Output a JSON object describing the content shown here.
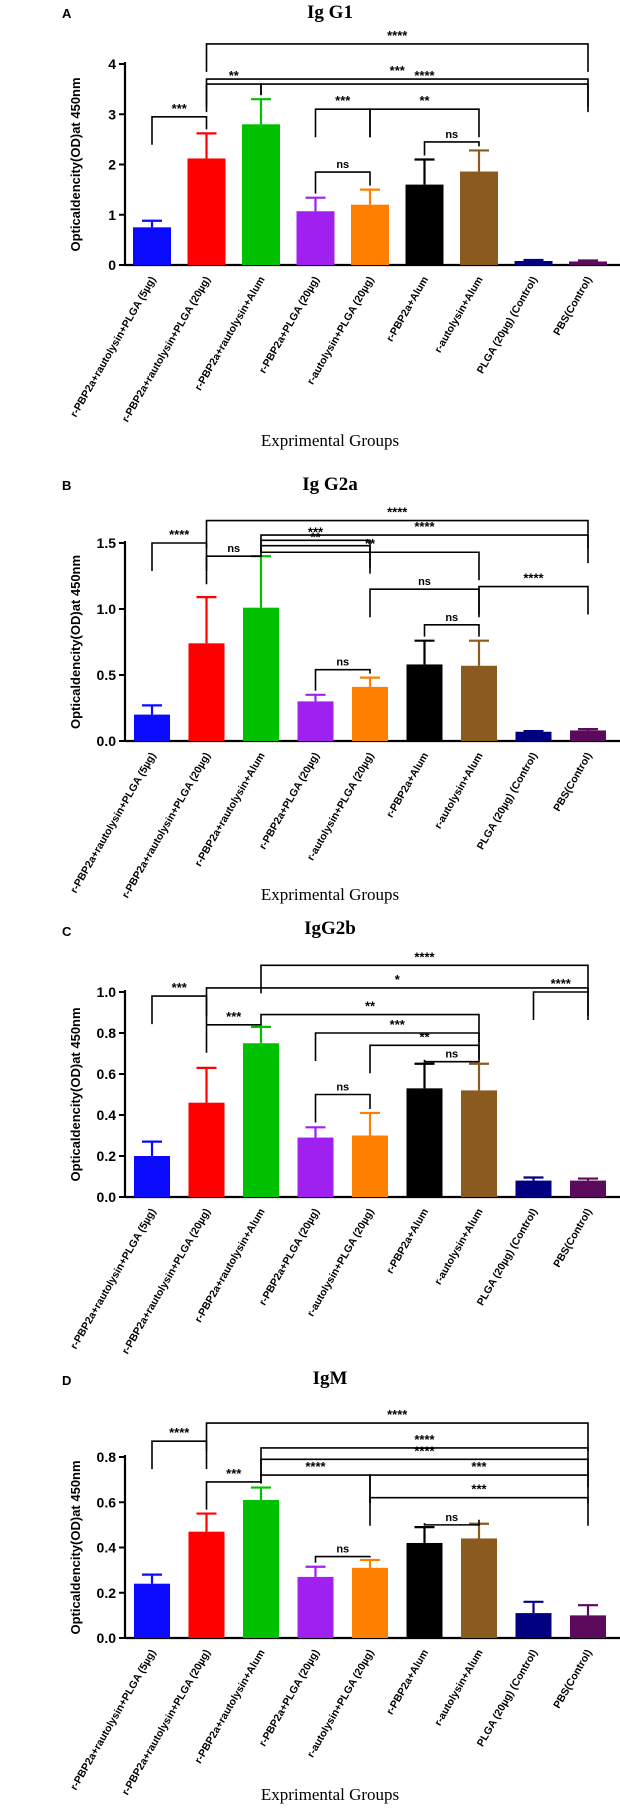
{
  "colors": [
    "#0a0aff",
    "#ff0000",
    "#00c000",
    "#a020f0",
    "#ff8000",
    "#000000",
    "#8b5a1e",
    "#000080",
    "#5c0a5c"
  ],
  "chart_data": [
    {
      "type": "bar",
      "panel": "A",
      "title": "Ig G1",
      "ylabel": "Opticaldencity(OD)at 450nm",
      "xlabel": "Exprimental Groups",
      "ylim": [
        0,
        4
      ],
      "yticks": [
        "0",
        "1",
        "2",
        "3",
        "4"
      ],
      "categories": [
        "r-PBP2a+rautolysin+PLGA (5µg)",
        "r-PBP2a+rautolysin+PLGA (20µg)",
        "r-PBP2a+rautolysin+Alum",
        "r-PBP2a+PLGA (20µg)",
        "r-autolysin+PLGA (20µg)",
        "r-PBP2a+Alum",
        "r-autolysin+Alum",
        "PLGA (20µg) (Control)",
        "PBS(Control)"
      ],
      "values": [
        0.75,
        2.12,
        2.8,
        1.07,
        1.2,
        1.6,
        1.86,
        0.08,
        0.07
      ],
      "errors": [
        0.13,
        0.5,
        0.5,
        0.27,
        0.3,
        0.5,
        0.42,
        0.02,
        0.02
      ],
      "significance": [
        {
          "label": "****",
          "from": 1,
          "to": 8,
          "level": 4.4
        },
        {
          "label": "***",
          "from": 1,
          "to": 8,
          "level": 3.7
        },
        {
          "label": "****",
          "from": 2,
          "to": 8,
          "level": 3.6
        },
        {
          "label": "**",
          "from": 1,
          "to": 2,
          "level": 3.6
        },
        {
          "label": "***",
          "from": 0,
          "to": 1,
          "level": 2.95
        },
        {
          "label": "***",
          "from": 3,
          "to": 4,
          "level": 3.1
        },
        {
          "label": "**",
          "from": 4,
          "to": 6,
          "level": 3.1
        },
        {
          "label": "ns",
          "from": 3,
          "to": 4,
          "level": 1.85
        },
        {
          "label": "ns",
          "from": 5,
          "to": 6,
          "level": 2.45
        }
      ]
    },
    {
      "type": "bar",
      "panel": "B",
      "title": "Ig G2a",
      "ylabel": "Opticaldencity(OD)at 450nm",
      "xlabel": "Exprimental Groups",
      "ylim": [
        0,
        1.5
      ],
      "yticks": [
        "0.0",
        "0.5",
        "1.0",
        "1.5"
      ],
      "categories": [
        "r-PBP2a+rautolysin+PLGA (5µg)",
        "r-PBP2a+rautolysin+PLGA (20µg)",
        "r-PBP2a+rautolysin+Alum",
        "r-PBP2a+PLGA (20µg)",
        "r-autolysin+PLGA (20µg)",
        "r-PBP2a+Alum",
        "r-autolysin+Alum",
        "PLGA (20µg) (Control)",
        "PBS(Control)"
      ],
      "values": [
        0.2,
        0.74,
        1.01,
        0.3,
        0.41,
        0.58,
        0.57,
        0.07,
        0.08
      ],
      "errors": [
        0.07,
        0.35,
        0.39,
        0.05,
        0.07,
        0.18,
        0.19,
        0.005,
        0.01
      ],
      "significance": [
        {
          "label": "****",
          "from": 1,
          "to": 8,
          "level": 1.67
        },
        {
          "label": "****",
          "from": 2,
          "to": 8,
          "level": 1.56
        },
        {
          "label": "****",
          "from": 0,
          "to": 1,
          "level": 1.5
        },
        {
          "label": "ns",
          "from": 1,
          "to": 2,
          "level": 1.4
        },
        {
          "label": "***",
          "from": 2,
          "to": 4,
          "level": 1.52
        },
        {
          "label": "**",
          "from": 2,
          "to": 4,
          "level": 1.48
        },
        {
          "label": "**",
          "from": 2,
          "to": 6,
          "level": 1.43
        },
        {
          "label": "ns",
          "from": 4,
          "to": 6,
          "level": 1.15
        },
        {
          "label": "****",
          "from": 6,
          "to": 8,
          "level": 1.17
        },
        {
          "label": "ns",
          "from": 5,
          "to": 6,
          "level": 0.88
        },
        {
          "label": "ns",
          "from": 3,
          "to": 4,
          "level": 0.54
        }
      ]
    },
    {
      "type": "bar",
      "panel": "C",
      "title": "IgG2b",
      "ylabel": "Opticaldencity(OD)at 450nm",
      "xlabel": "",
      "ylim": [
        0,
        1.0
      ],
      "yticks": [
        "0.0",
        "0.2",
        "0.4",
        "0.6",
        "0.8",
        "1.0"
      ],
      "categories": [
        "r-PBP2a+rautolysin+PLGA (5µg)",
        "r-PBP2a+rautolysin+PLGA (20µg)",
        "r-PBP2a+rautolysin+Alum",
        "r-PBP2a+PLGA (20µg)",
        "r-autolysin+PLGA (20µg)",
        "r-PBP2a+Alum",
        "r-autolysin+Alum",
        "PLGA (20µg) (Control)",
        "PBS(Control)"
      ],
      "values": [
        0.2,
        0.46,
        0.75,
        0.29,
        0.3,
        0.53,
        0.52,
        0.08,
        0.08
      ],
      "errors": [
        0.07,
        0.17,
        0.08,
        0.05,
        0.11,
        0.12,
        0.13,
        0.015,
        0.01
      ],
      "significance": [
        {
          "label": "****",
          "from": 2,
          "to": 8,
          "level": 1.13
        },
        {
          "label": "*",
          "from": 1,
          "to": 8,
          "level": 1.02
        },
        {
          "label": "****",
          "from": 7,
          "to": 8,
          "level": 1.0
        },
        {
          "label": "***",
          "from": 0,
          "to": 1,
          "level": 0.98
        },
        {
          "label": "**",
          "from": 2,
          "to": 6,
          "level": 0.89
        },
        {
          "label": "***",
          "from": 1,
          "to": 2,
          "level": 0.84
        },
        {
          "label": "***",
          "from": 3,
          "to": 6,
          "level": 0.8
        },
        {
          "label": "**",
          "from": 4,
          "to": 6,
          "level": 0.74
        },
        {
          "label": "ns",
          "from": 5,
          "to": 6,
          "level": 0.66
        },
        {
          "label": "ns",
          "from": 3,
          "to": 4,
          "level": 0.5
        }
      ]
    },
    {
      "type": "bar",
      "panel": "D",
      "title": "IgM",
      "ylabel": "Opticaldencity(OD)at 450nm",
      "xlabel": "Exprimental Groups",
      "ylim": [
        0,
        0.8
      ],
      "yticks": [
        "0.0",
        "0.2",
        "0.4",
        "0.6",
        "0.8"
      ],
      "categories": [
        "r-PBP2a+rautolysin+PLGA (5µg)",
        "r-PBP2a+rautolysin+PLGA (20µg)",
        "r-PBP2a+rautolysin+Alum",
        "r-PBP2a+PLGA (20µg)",
        "r-autolysin+PLGA (20µg)",
        "r-PBP2a+Alum",
        "r-autolysin+Alum",
        "PLGA (20µg) (Control)",
        "PBS(Control)"
      ],
      "values": [
        0.24,
        0.47,
        0.61,
        0.27,
        0.31,
        0.42,
        0.44,
        0.11,
        0.1
      ],
      "errors": [
        0.04,
        0.08,
        0.055,
        0.045,
        0.035,
        0.07,
        0.065,
        0.05,
        0.045
      ],
      "significance": [
        {
          "label": "****",
          "from": 1,
          "to": 8,
          "level": 0.95
        },
        {
          "label": "****",
          "from": 0,
          "to": 1,
          "level": 0.87
        },
        {
          "label": "****",
          "from": 2,
          "to": 8,
          "level": 0.84
        },
        {
          "label": "****",
          "from": 2,
          "to": 8,
          "level": 0.79
        },
        {
          "label": "***",
          "from": 1,
          "to": 2,
          "level": 0.69
        },
        {
          "label": "****",
          "from": 2,
          "to": 4,
          "level": 0.72
        },
        {
          "label": "***",
          "from": 4,
          "to": 8,
          "level": 0.72
        },
        {
          "label": "***",
          "from": 4,
          "to": 8,
          "level": 0.62
        },
        {
          "label": "ns",
          "from": 5,
          "to": 6,
          "level": 0.5
        },
        {
          "label": "ns",
          "from": 3,
          "to": 4,
          "level": 0.36
        }
      ]
    }
  ]
}
